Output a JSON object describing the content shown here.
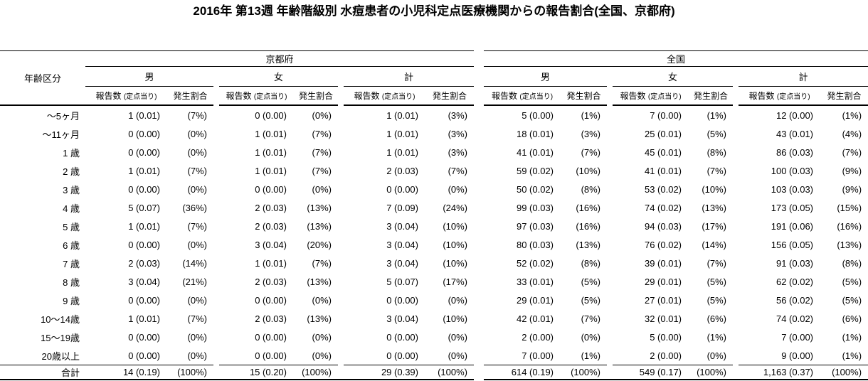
{
  "title": "2016年 第13週 年齢階級別 水痘患者の小児科定点医療機関からの報告割合(全国、京都府)",
  "table": {
    "age_column_header": "年齢区分",
    "regions": [
      "京都府",
      "全国"
    ],
    "genders": [
      "男",
      "女",
      "計"
    ],
    "count_header": "報告数",
    "count_header_unit": "(定点当り)",
    "ratio_header": "発生割合"
  },
  "chart_data": {
    "type": "table",
    "title": "2016年 第13週 年齢階級別 水痘患者の小児科定点医療機関からの報告割合(全国、京都府)",
    "column_groups": [
      {
        "region": "京都府",
        "genders": [
          "男",
          "女",
          "計"
        ]
      },
      {
        "region": "全国",
        "genders": [
          "男",
          "女",
          "計"
        ]
      }
    ],
    "sub_columns_per_gender": [
      "報告数 (定点当り)",
      "発生割合"
    ],
    "rows": [
      {
        "age": "〜5ヶ月",
        "values": [
          "1 (0.01)",
          "(7%)",
          "0 (0.00)",
          "(0%)",
          "1 (0.01)",
          "(3%)",
          "5 (0.00)",
          "(1%)",
          "7 (0.00)",
          "(1%)",
          "12 (0.00)",
          "(1%)"
        ]
      },
      {
        "age": "〜11ヶ月",
        "values": [
          "0 (0.00)",
          "(0%)",
          "1 (0.01)",
          "(7%)",
          "1 (0.01)",
          "(3%)",
          "18 (0.01)",
          "(3%)",
          "25 (0.01)",
          "(5%)",
          "43 (0.01)",
          "(4%)"
        ]
      },
      {
        "age": "1 歳",
        "values": [
          "0 (0.00)",
          "(0%)",
          "1 (0.01)",
          "(7%)",
          "1 (0.01)",
          "(3%)",
          "41 (0.01)",
          "(7%)",
          "45 (0.01)",
          "(8%)",
          "86 (0.03)",
          "(7%)"
        ]
      },
      {
        "age": "2 歳",
        "values": [
          "1 (0.01)",
          "(7%)",
          "1 (0.01)",
          "(7%)",
          "2 (0.03)",
          "(7%)",
          "59 (0.02)",
          "(10%)",
          "41 (0.01)",
          "(7%)",
          "100 (0.03)",
          "(9%)"
        ]
      },
      {
        "age": "3 歳",
        "values": [
          "0 (0.00)",
          "(0%)",
          "0 (0.00)",
          "(0%)",
          "0 (0.00)",
          "(0%)",
          "50 (0.02)",
          "(8%)",
          "53 (0.02)",
          "(10%)",
          "103 (0.03)",
          "(9%)"
        ]
      },
      {
        "age": "4 歳",
        "values": [
          "5 (0.07)",
          "(36%)",
          "2 (0.03)",
          "(13%)",
          "7 (0.09)",
          "(24%)",
          "99 (0.03)",
          "(16%)",
          "74 (0.02)",
          "(13%)",
          "173 (0.05)",
          "(15%)"
        ]
      },
      {
        "age": "5 歳",
        "values": [
          "1 (0.01)",
          "(7%)",
          "2 (0.03)",
          "(13%)",
          "3 (0.04)",
          "(10%)",
          "97 (0.03)",
          "(16%)",
          "94 (0.03)",
          "(17%)",
          "191 (0.06)",
          "(16%)"
        ]
      },
      {
        "age": "6 歳",
        "values": [
          "0 (0.00)",
          "(0%)",
          "3 (0.04)",
          "(20%)",
          "3 (0.04)",
          "(10%)",
          "80 (0.03)",
          "(13%)",
          "76 (0.02)",
          "(14%)",
          "156 (0.05)",
          "(13%)"
        ]
      },
      {
        "age": "7 歳",
        "values": [
          "2 (0.03)",
          "(14%)",
          "1 (0.01)",
          "(7%)",
          "3 (0.04)",
          "(10%)",
          "52 (0.02)",
          "(8%)",
          "39 (0.01)",
          "(7%)",
          "91 (0.03)",
          "(8%)"
        ]
      },
      {
        "age": "8 歳",
        "values": [
          "3 (0.04)",
          "(21%)",
          "2 (0.03)",
          "(13%)",
          "5 (0.07)",
          "(17%)",
          "33 (0.01)",
          "(5%)",
          "29 (0.01)",
          "(5%)",
          "62 (0.02)",
          "(5%)"
        ]
      },
      {
        "age": "9 歳",
        "values": [
          "0 (0.00)",
          "(0%)",
          "0 (0.00)",
          "(0%)",
          "0 (0.00)",
          "(0%)",
          "29 (0.01)",
          "(5%)",
          "27 (0.01)",
          "(5%)",
          "56 (0.02)",
          "(5%)"
        ]
      },
      {
        "age": "10〜14歳",
        "values": [
          "1 (0.01)",
          "(7%)",
          "2 (0.03)",
          "(13%)",
          "3 (0.04)",
          "(10%)",
          "42 (0.01)",
          "(7%)",
          "32 (0.01)",
          "(6%)",
          "74 (0.02)",
          "(6%)"
        ]
      },
      {
        "age": "15〜19歳",
        "values": [
          "0 (0.00)",
          "(0%)",
          "0 (0.00)",
          "(0%)",
          "0 (0.00)",
          "(0%)",
          "2 (0.00)",
          "(0%)",
          "5 (0.00)",
          "(1%)",
          "7 (0.00)",
          "(1%)"
        ]
      },
      {
        "age": "20歳以上",
        "values": [
          "0 (0.00)",
          "(0%)",
          "0 (0.00)",
          "(0%)",
          "0 (0.00)",
          "(0%)",
          "7 (0.00)",
          "(1%)",
          "2 (0.00)",
          "(0%)",
          "9 (0.00)",
          "(1%)"
        ]
      }
    ],
    "total": {
      "age": "合計",
      "values": [
        "14 (0.19)",
        "(100%)",
        "15 (0.20)",
        "(100%)",
        "29 (0.39)",
        "(100%)",
        "614 (0.19)",
        "(100%)",
        "549 (0.17)",
        "(100%)",
        "1,163 (0.37)",
        "(100%)"
      ]
    }
  }
}
